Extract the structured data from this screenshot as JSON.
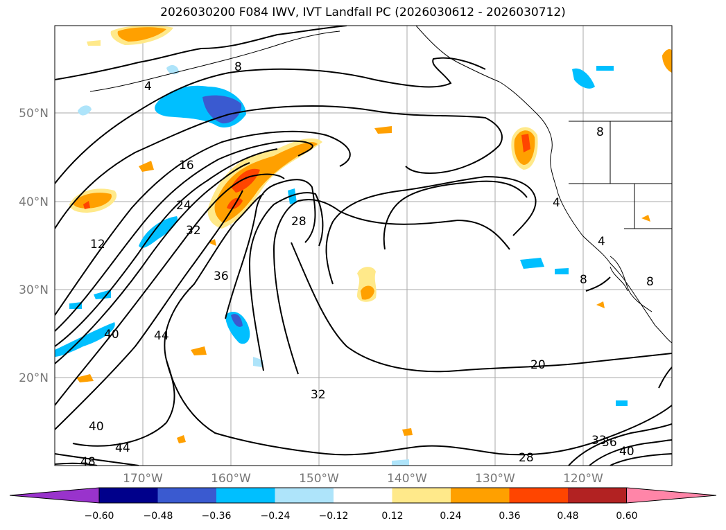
{
  "title": "2026030200 F084 IWV, IVT Landfall PC (2026030612 - 2026030712)",
  "lat_labels": [
    "50°N",
    "40°N",
    "30°N",
    "20°N"
  ],
  "lon_labels": [
    "170°W",
    "160°W",
    "150°W",
    "140°W",
    "130°W",
    "120°W"
  ],
  "contour_labels": [
    "8",
    "4",
    "16",
    "24",
    "32",
    "12",
    "28",
    "36",
    "40",
    "44",
    "40",
    "44",
    "48",
    "32",
    "20",
    "28",
    "33",
    "36",
    "40",
    "4",
    "4",
    "8",
    "8",
    "8"
  ],
  "colorbar": {
    "ticks": [
      "−0.60",
      "−0.48",
      "−0.36",
      "−0.24",
      "−0.12",
      "0.12",
      "0.24",
      "0.36",
      "0.48",
      "0.60"
    ],
    "colors": [
      "#9933cc",
      "#00008b",
      "#3a5ad0",
      "#00bfff",
      "#aee4fa",
      "#ffffff",
      "#ffe98a",
      "#ffa000",
      "#ff4500",
      "#b22222",
      "#ff85a8"
    ]
  }
}
